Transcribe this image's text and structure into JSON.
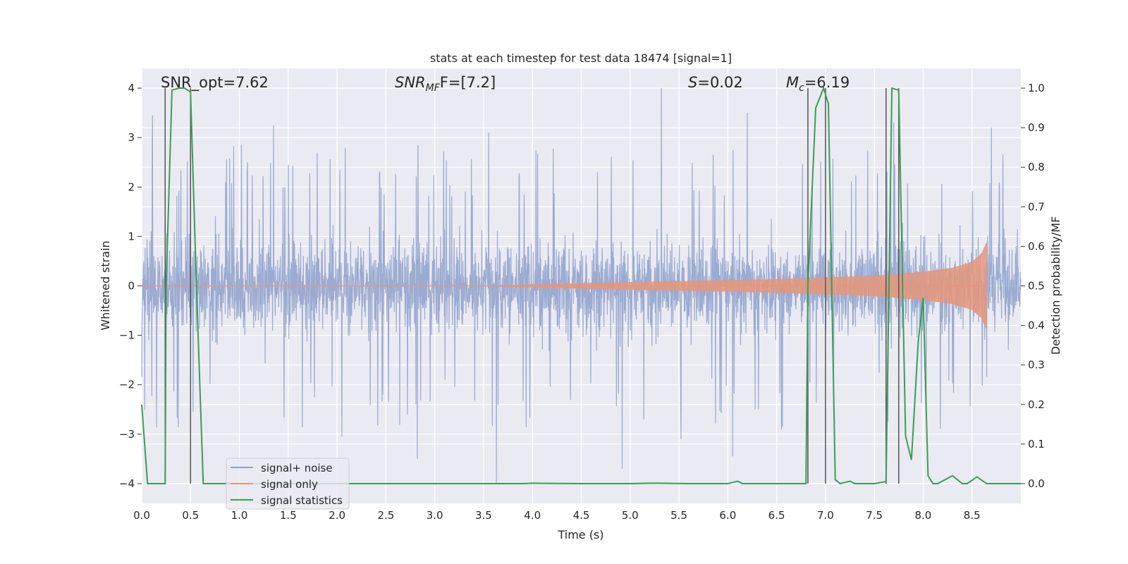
{
  "chart_data": {
    "type": "line",
    "title": "stats at each timestep for test data 18474 [signal=1]",
    "xlabel": "Time (s)",
    "ylabel_left": "Whitened strain",
    "ylabel_right": "Detection probability/MF",
    "xlim": [
      0.0,
      9.0
    ],
    "ylim_left": [
      -4.4,
      4.4
    ],
    "ylim_right": [
      -0.05,
      1.05
    ],
    "x_ticks": [
      "0.0",
      "0.5",
      "1.0",
      "1.5",
      "2.0",
      "2.5",
      "3.0",
      "3.5",
      "4.0",
      "4.5",
      "5.0",
      "5.5",
      "6.0",
      "6.5",
      "7.0",
      "7.5",
      "8.0",
      "8.5"
    ],
    "y_ticks_left": [
      "−4",
      "−3",
      "−2",
      "−1",
      "0",
      "1",
      "2",
      "3",
      "4"
    ],
    "y_ticks_right": [
      "0.0",
      "0.1",
      "0.2",
      "0.3",
      "0.4",
      "0.5",
      "0.6",
      "0.7",
      "0.8",
      "0.9",
      "1.0"
    ],
    "annotations": {
      "snr_opt": "SNR_opt=7.62",
      "snr_mf_main": "SNR",
      "snr_mf_sub": "MF",
      "snr_mf_tail": "F=[7.2]",
      "s_main": "S",
      "s_tail": "=0.02",
      "mc_main": "M",
      "mc_sub": "c",
      "mc_tail": "=6.19"
    },
    "legend": {
      "position": "lower-left",
      "entries": [
        "signal+ noise",
        "signal only",
        "signal statistics"
      ]
    },
    "colors": {
      "signal_noise": "#8da0cb",
      "signal_only": "#e5967b",
      "signal_statistics": "#3a9e55",
      "vlines": "#555555",
      "background": "#eaeaf2",
      "grid": "#ffffff"
    },
    "series": [
      {
        "name": "signal+ noise",
        "note": "whitened strain noise, dense trace spanning roughly -1.6 to 1.6 with spikes up to about 4.0 and down to about -4.0",
        "typical_range": [
          -1.6,
          1.6
        ],
        "spike_peaks": [
          {
            "x": 0.11,
            "y": 3.45
          },
          {
            "x": 0.38,
            "y": 3.55
          },
          {
            "x": 0.5,
            "y": 2.8
          },
          {
            "x": 1.35,
            "y": 3.25
          },
          {
            "x": 2.05,
            "y": 3.3
          },
          {
            "x": 3.55,
            "y": 3.1
          },
          {
            "x": 4.18,
            "y": 3.25
          },
          {
            "x": 5.32,
            "y": 4.0
          },
          {
            "x": 6.2,
            "y": 3.5
          },
          {
            "x": 7.7,
            "y": 3.3
          },
          {
            "x": 8.7,
            "y": 3.2
          }
        ],
        "spike_troughs": [
          {
            "x": 0.03,
            "y": -2.35
          },
          {
            "x": 2.05,
            "y": -3.05
          },
          {
            "x": 2.82,
            "y": -3.5
          },
          {
            "x": 3.63,
            "y": -4.0
          },
          {
            "x": 4.92,
            "y": -3.7
          },
          {
            "x": 5.52,
            "y": -3.1
          },
          {
            "x": 6.05,
            "y": -3.45
          },
          {
            "x": 6.55,
            "y": -2.9
          }
        ]
      },
      {
        "name": "signal only",
        "note": "chirp waveform, envelope amplitude growing from 0 to about 0.9 ending near t=8.65",
        "envelope": [
          {
            "x": 3.5,
            "a": 0.0
          },
          {
            "x": 4.5,
            "a": 0.05
          },
          {
            "x": 5.5,
            "a": 0.09
          },
          {
            "x": 6.5,
            "a": 0.13
          },
          {
            "x": 7.5,
            "a": 0.2
          },
          {
            "x": 8.0,
            "a": 0.28
          },
          {
            "x": 8.3,
            "a": 0.36
          },
          {
            "x": 8.5,
            "a": 0.48
          },
          {
            "x": 8.6,
            "a": 0.65
          },
          {
            "x": 8.65,
            "a": 0.88
          }
        ],
        "end_x": 8.65
      },
      {
        "name": "signal statistics",
        "axis": "right",
        "x": [
          0.0,
          0.06,
          0.15,
          0.24,
          0.25,
          0.31,
          0.38,
          0.44,
          0.5,
          0.56,
          0.63,
          0.9,
          1.5,
          2.0,
          3.0,
          3.5,
          3.9,
          4.0,
          4.5,
          5.0,
          5.2,
          5.3,
          5.6,
          6.0,
          6.1,
          6.15,
          6.3,
          6.8,
          6.82,
          6.9,
          6.98,
          7.03,
          7.1,
          7.15,
          7.25,
          7.3,
          7.5,
          7.62,
          7.68,
          7.75,
          7.82,
          7.88,
          7.95,
          8.0,
          8.05,
          8.1,
          8.15,
          8.3,
          8.4,
          8.45,
          8.55,
          8.65,
          9.0
        ],
        "y": [
          0.2,
          0.0,
          0.0,
          0.0,
          0.5,
          0.995,
          1.0,
          1.0,
          0.99,
          0.5,
          0.0,
          0.0,
          0.0,
          0.0,
          0.0,
          0.0,
          0.0,
          0.001,
          0.0,
          0.0,
          0.001,
          0.001,
          0.0,
          0.0,
          0.006,
          0.0,
          0.0,
          0.0,
          0.5,
          0.95,
          1.0,
          0.96,
          0.01,
          0.0,
          0.006,
          0.0,
          0.0,
          0.005,
          1.0,
          0.995,
          0.12,
          0.06,
          0.36,
          0.47,
          0.02,
          0.0,
          0.0,
          0.02,
          0.0,
          0.0,
          0.017,
          0.0,
          0.0
        ]
      }
    ],
    "vertical_lines": [
      {
        "x": 0.24,
        "y_top": 4.0,
        "y_bottom": -4.0
      },
      {
        "x": 0.5,
        "y_top": 4.0,
        "y_bottom": -4.0
      },
      {
        "x": 6.82,
        "y_top": 4.0,
        "y_bottom": -4.0
      },
      {
        "x": 7.0,
        "y_top": 4.0,
        "y_bottom": -4.0
      },
      {
        "x": 7.62,
        "y_top": 4.0,
        "y_bottom": -4.0
      },
      {
        "x": 7.75,
        "y_top": 4.0,
        "y_bottom": -4.0
      }
    ]
  }
}
